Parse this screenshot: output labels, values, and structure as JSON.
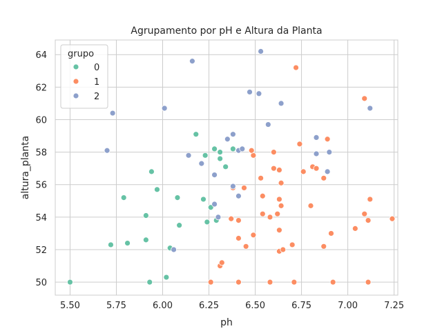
{
  "chart_data": {
    "type": "scatter",
    "title": "Agrupamento por pH e Altura da Planta",
    "xlabel": "ph",
    "ylabel": "altura_planta",
    "xlim": [
      5.42,
      7.27
    ],
    "ylim": [
      49.2,
      64.9
    ],
    "xticks": [
      5.5,
      5.75,
      6.0,
      6.25,
      6.5,
      6.75,
      7.0,
      7.25
    ],
    "xtick_labels": [
      "5.50",
      "5.75",
      "6.00",
      "6.25",
      "6.50",
      "6.75",
      "7.00",
      "7.25"
    ],
    "yticks": [
      50,
      52,
      54,
      56,
      58,
      60,
      62,
      64
    ],
    "ytick_labels": [
      "50",
      "52",
      "54",
      "56",
      "58",
      "60",
      "62",
      "64"
    ],
    "grid": true,
    "legend": {
      "title": "grupo",
      "position": "top-left"
    },
    "series": [
      {
        "name": "0",
        "color": "#66c2a5",
        "points": [
          [
            5.5,
            50.0
          ],
          [
            5.93,
            50.0
          ],
          [
            6.02,
            50.3
          ],
          [
            6.04,
            52.1
          ],
          [
            5.72,
            52.3
          ],
          [
            5.81,
            52.4
          ],
          [
            5.91,
            52.6
          ],
          [
            6.09,
            53.5
          ],
          [
            5.91,
            54.1
          ],
          [
            6.24,
            53.7
          ],
          [
            6.29,
            53.8
          ],
          [
            6.26,
            54.6
          ],
          [
            6.22,
            55.1
          ],
          [
            6.08,
            55.2
          ],
          [
            5.79,
            55.2
          ],
          [
            5.97,
            55.7
          ],
          [
            5.94,
            56.8
          ],
          [
            6.34,
            57.1
          ],
          [
            6.31,
            57.6
          ],
          [
            6.23,
            57.8
          ],
          [
            6.31,
            58.0
          ],
          [
            6.28,
            58.2
          ],
          [
            6.38,
            58.2
          ],
          [
            6.18,
            59.1
          ]
        ]
      },
      {
        "name": "1",
        "color": "#fc8d62",
        "points": [
          [
            6.26,
            50.0
          ],
          [
            6.41,
            50.0
          ],
          [
            6.58,
            50.0
          ],
          [
            6.71,
            50.0
          ],
          [
            6.92,
            50.0
          ],
          [
            7.11,
            50.0
          ],
          [
            6.31,
            51.0
          ],
          [
            6.32,
            51.2
          ],
          [
            6.63,
            51.9
          ],
          [
            6.65,
            52.0
          ],
          [
            6.7,
            52.3
          ],
          [
            6.45,
            52.2
          ],
          [
            6.87,
            52.2
          ],
          [
            6.41,
            52.7
          ],
          [
            6.49,
            52.9
          ],
          [
            6.91,
            53.0
          ],
          [
            6.63,
            53.2
          ],
          [
            7.04,
            53.3
          ],
          [
            6.37,
            53.9
          ],
          [
            6.41,
            53.8
          ],
          [
            6.58,
            54.0
          ],
          [
            6.62,
            54.2
          ],
          [
            7.09,
            54.2
          ],
          [
            7.11,
            53.8
          ],
          [
            6.54,
            54.2
          ],
          [
            7.24,
            53.9
          ],
          [
            6.64,
            54.7
          ],
          [
            6.8,
            54.7
          ],
          [
            6.63,
            55.1
          ],
          [
            6.54,
            55.3
          ],
          [
            7.12,
            55.1
          ],
          [
            6.38,
            55.8
          ],
          [
            6.44,
            55.8
          ],
          [
            6.64,
            56.1
          ],
          [
            6.53,
            56.4
          ],
          [
            6.87,
            56.4
          ],
          [
            6.6,
            57.0
          ],
          [
            6.63,
            56.9
          ],
          [
            6.76,
            56.8
          ],
          [
            6.81,
            57.1
          ],
          [
            6.83,
            57.0
          ],
          [
            6.49,
            57.8
          ],
          [
            6.48,
            58.1
          ],
          [
            6.6,
            58.0
          ],
          [
            6.74,
            58.5
          ],
          [
            6.89,
            58.8
          ],
          [
            7.09,
            61.3
          ],
          [
            6.72,
            63.2
          ]
        ]
      },
      {
        "name": "2",
        "color": "#8da0cb",
        "points": [
          [
            6.06,
            52.0
          ],
          [
            6.3,
            54.0
          ],
          [
            6.28,
            54.8
          ],
          [
            6.41,
            55.3
          ],
          [
            6.38,
            55.9
          ],
          [
            6.28,
            56.6
          ],
          [
            6.89,
            56.8
          ],
          [
            6.21,
            57.3
          ],
          [
            6.14,
            57.8
          ],
          [
            6.41,
            58.1
          ],
          [
            6.43,
            58.2
          ],
          [
            6.35,
            58.8
          ],
          [
            6.38,
            59.1
          ],
          [
            6.83,
            57.9
          ],
          [
            6.9,
            58.0
          ],
          [
            5.7,
            58.1
          ],
          [
            6.83,
            58.9
          ],
          [
            6.57,
            59.7
          ],
          [
            5.73,
            60.4
          ],
          [
            6.01,
            60.7
          ],
          [
            7.12,
            60.7
          ],
          [
            6.64,
            61.0
          ],
          [
            6.52,
            61.6
          ],
          [
            6.47,
            61.7
          ],
          [
            6.16,
            63.6
          ],
          [
            6.53,
            64.2
          ]
        ]
      }
    ]
  }
}
